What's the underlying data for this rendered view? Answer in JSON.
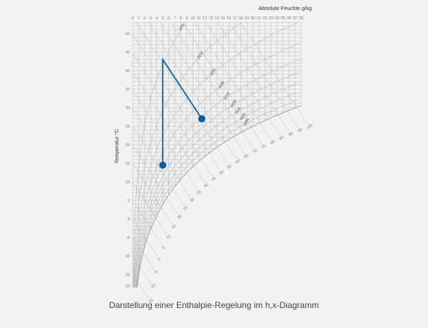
{
  "chart_data": {
    "type": "line",
    "title": "",
    "xlabel": "Absolute Feuchte g/kg",
    "ylabel": "Temperatur °C",
    "xlim": [
      0,
      28
    ],
    "ylim": [
      -18,
      50
    ],
    "x_ticks": [
      0,
      1,
      2,
      3,
      4,
      5,
      6,
      7,
      8,
      9,
      10,
      11,
      12,
      13,
      14,
      15,
      16,
      17,
      18,
      19,
      20,
      21,
      22,
      23,
      24,
      25,
      26,
      27,
      28
    ],
    "y_ticks": [
      50,
      45,
      40,
      35,
      30,
      25,
      20,
      15,
      10,
      5,
      0,
      -5,
      -10,
      -15,
      -18
    ],
    "rh_labels": [
      "10%",
      "20%",
      "30%",
      "40%",
      "50%",
      "60%",
      "70%",
      "80%",
      "90%"
    ],
    "rh_values": [
      0.1,
      0.2,
      0.3,
      0.4,
      0.5,
      0.6,
      0.7,
      0.8,
      0.9
    ],
    "enthalpy_labels": [
      -20,
      -15,
      -10,
      -5,
      0,
      5,
      10,
      15,
      20,
      25,
      30,
      35,
      40,
      45,
      50,
      55,
      60,
      65,
      70,
      75,
      80,
      85,
      90,
      95,
      100
    ],
    "grid": true,
    "series": [
      {
        "points": [
          {
            "x": 5,
            "y": 14.5
          },
          {
            "x": 5,
            "y": 43
          },
          {
            "x": 11.5,
            "y": 27
          }
        ],
        "markers": [
          "start",
          "end"
        ],
        "color": "#0b5cad"
      }
    ],
    "colors": {
      "grid": "#b4b4b4",
      "line": "#0b5cad",
      "background": "#f2f2f2"
    }
  },
  "caption": "Darstellung einer Enthalpie-Regelung im h,x-Diagramm"
}
